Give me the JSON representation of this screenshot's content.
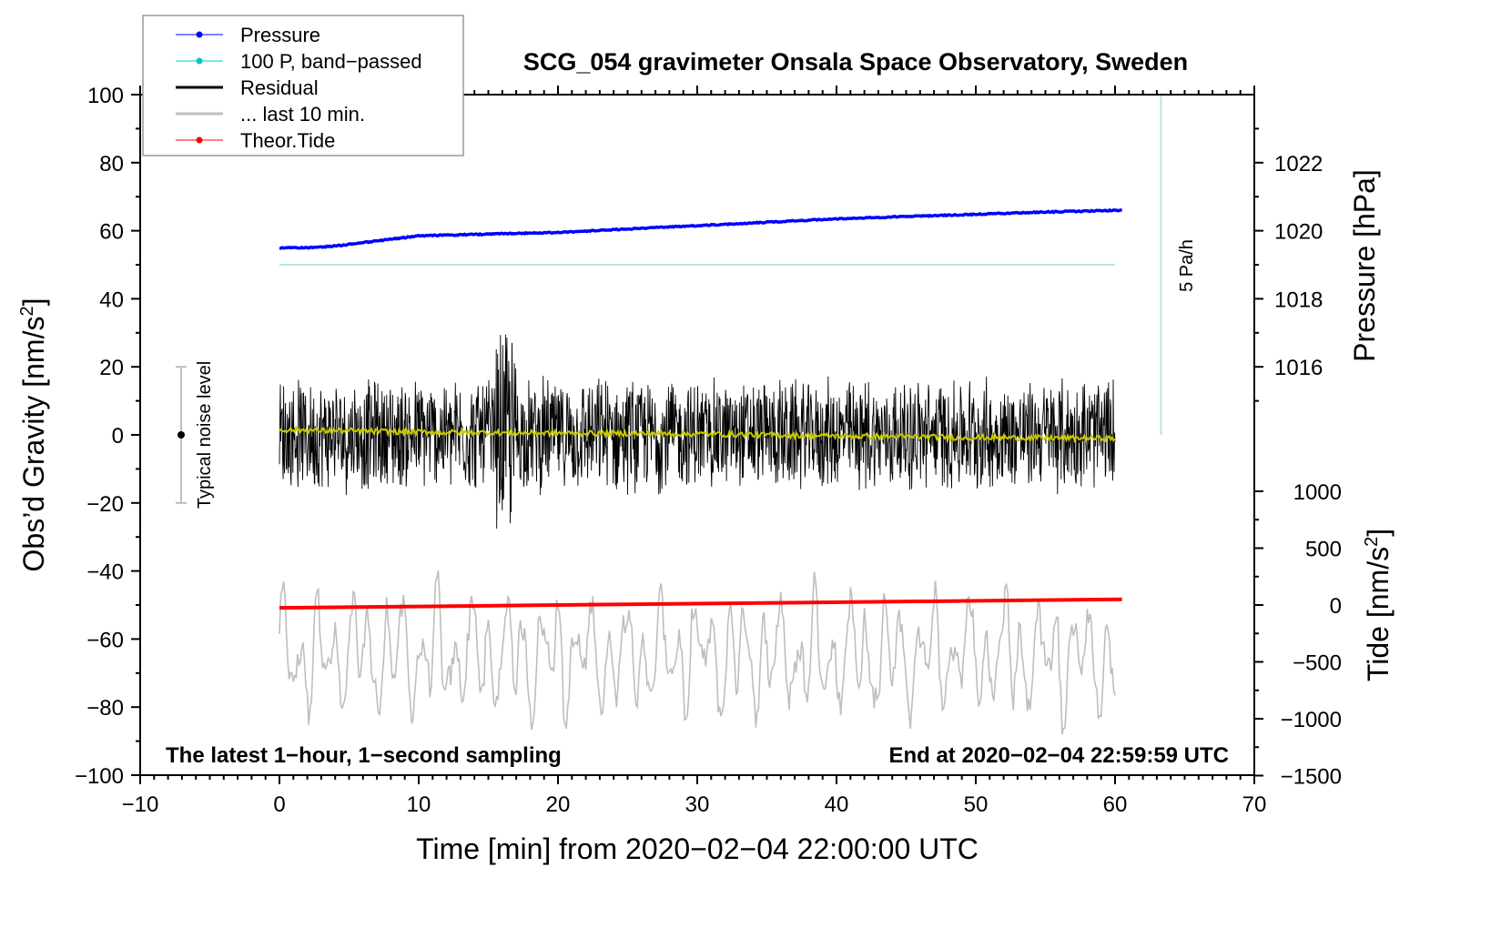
{
  "chart_data": {
    "type": "line",
    "title": "SCG_054 gravimeter Onsala Space Observatory, Sweden",
    "xlabel": "Time [min] from 2020−02−04 22:00:00 UTC",
    "ylabel": "Obs’d Gravity [nm/s",
    "ylabel_sup": "2",
    "ylabel_end": "]",
    "y2label": "Pressure [hPa]",
    "y3label": "Tide [nm/s",
    "y3label_sup": "2",
    "y3label_end": "]",
    "xlim": [
      -10,
      70
    ],
    "ylim": [
      -100,
      100
    ],
    "xticks": [
      "−10",
      "0",
      "10",
      "20",
      "30",
      "40",
      "50",
      "60",
      "70"
    ],
    "xtick_values": [
      -10,
      0,
      10,
      20,
      30,
      40,
      50,
      60,
      70
    ],
    "yticks": [
      "−100",
      "−80",
      "−60",
      "−40",
      "−20",
      "0",
      "20",
      "40",
      "60",
      "80",
      "100"
    ],
    "ytick_values": [
      -100,
      -80,
      -60,
      -40,
      -20,
      0,
      20,
      40,
      60,
      80,
      100
    ],
    "pressure_ticks": [
      "1016",
      "1018",
      "1020",
      "1022"
    ],
    "pressure_tick_values": [
      1016,
      1018,
      1020,
      1022
    ],
    "tide_ticks": [
      "−1500",
      "−1000",
      "−500",
      "0",
      "500",
      "1000"
    ],
    "tide_tick_values": [
      -1500,
      -1000,
      -500,
      0,
      500,
      1000
    ],
    "legend": {
      "placement": "top-left",
      "entries": [
        {
          "label": "Pressure",
          "color": "#0000ff",
          "marker": true
        },
        {
          "label": "100 P, band−passed",
          "color": "#00c8c8",
          "marker": true
        },
        {
          "label": "Residual",
          "color": "#000000",
          "marker": false
        },
        {
          "label": "... last 10 min.",
          "color": "#bebebe",
          "marker": false
        },
        {
          "label": "Theor.Tide",
          "color": "#ff0000",
          "marker": true
        }
      ]
    },
    "annotations": {
      "left_bottom": "The latest 1−hour, 1−second sampling",
      "right_bottom": "End at 2020−02−04 22:59:59 UTC",
      "noise_label": "Typical noise level",
      "noise_range": [
        -20,
        20
      ],
      "rate_label": "5 Pa/h"
    },
    "series": [
      {
        "name": "Pressure",
        "unit": "hPa",
        "color": "#0000ff",
        "x": [
          0,
          2,
          4,
          6,
          8,
          10,
          15,
          20,
          25,
          30,
          35,
          40,
          45,
          50,
          55,
          60.5
        ],
        "values": [
          1019.5,
          1019.5,
          1019.55,
          1019.65,
          1019.75,
          1019.85,
          1019.9,
          1019.95,
          1020.05,
          1020.15,
          1020.25,
          1020.35,
          1020.42,
          1020.48,
          1020.55,
          1020.6
        ]
      },
      {
        "name": "100 P, band-passed",
        "unit": "nm/s2 (gravity axis)",
        "color": "#b4e6e6",
        "x": [
          0,
          60
        ],
        "values": [
          50,
          50
        ]
      },
      {
        "name": "Residual",
        "unit": "nm/s2",
        "color": "#000000",
        "typical_amplitude": 15,
        "max": 44,
        "min": -42
      },
      {
        "name": "Residual smoothed",
        "unit": "nm/s2",
        "color": "#c8c800",
        "x": [
          0,
          10,
          20,
          30,
          40,
          50,
          60
        ],
        "values": [
          1.5,
          0.8,
          0.5,
          0.3,
          -0.3,
          -0.8,
          -1.0
        ]
      },
      {
        "name": "... last 10 min.",
        "unit": "nm/s2",
        "color": "#bebebe",
        "center": -65,
        "amplitude": 20
      },
      {
        "name": "Theor.Tide",
        "unit": "nm/s2",
        "color": "#ff0000",
        "x": [
          0,
          60.5
        ],
        "values": [
          -25,
          50
        ]
      }
    ]
  }
}
